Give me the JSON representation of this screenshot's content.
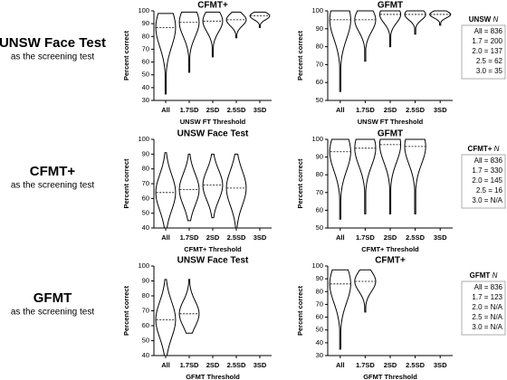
{
  "chart_data": [
    {
      "type": "violin",
      "title": "CFMT+",
      "y_label": "Percent correct",
      "x_label": "UNSW FT Threshold",
      "categories": [
        "All",
        "1.7SD",
        "2SD",
        "2.5SD",
        "3SD"
      ],
      "violins": [
        {
          "min": 35,
          "max": 98,
          "median": 87
        },
        {
          "min": 52,
          "max": 99,
          "median": 91
        },
        {
          "min": 64,
          "max": 99,
          "median": 92
        },
        {
          "min": 79,
          "max": 99,
          "median": 93
        },
        {
          "min": 87,
          "max": 99,
          "median": 96
        }
      ],
      "ylim": [
        30,
        100
      ],
      "yticks": [
        30,
        40,
        50,
        60,
        70,
        80,
        90,
        100
      ]
    },
    {
      "type": "violin",
      "title": "GFMT",
      "y_label": "Percent correct",
      "x_label": "UNSW FT Threshold",
      "categories": [
        "All",
        "1.7SD",
        "2SD",
        "2.5SD",
        "3SD"
      ],
      "violins": [
        {
          "min": 55,
          "max": 100,
          "median": 95
        },
        {
          "min": 72,
          "max": 100,
          "median": 95
        },
        {
          "min": 80,
          "max": 100,
          "median": 98
        },
        {
          "min": 87,
          "max": 100,
          "median": 98
        },
        {
          "min": 92,
          "max": 100,
          "median": 98
        }
      ],
      "ylim": [
        50,
        100
      ],
      "yticks": [
        50,
        60,
        70,
        80,
        90,
        100
      ]
    },
    {
      "type": "violin",
      "title": "UNSW Face Test",
      "y_label": "Percent correct",
      "x_label": "CFMT+ Threshold",
      "categories": [
        "All",
        "1.7SD",
        "2SD",
        "2.5SD",
        "3SD"
      ],
      "violins": [
        {
          "min": 40,
          "max": 91,
          "median": 64
        },
        {
          "min": 45,
          "max": 90,
          "median": 66
        },
        {
          "min": 47,
          "max": 90,
          "median": 69
        },
        {
          "min": 40,
          "max": 90,
          "median": 67
        },
        null
      ],
      "ylim": [
        40,
        100
      ],
      "yticks": [
        40,
        50,
        60,
        70,
        80,
        90,
        100
      ]
    },
    {
      "type": "violin",
      "title": "GFMT",
      "y_label": "Percent correct",
      "x_label": "CFMT+ Threshold",
      "categories": [
        "All",
        "1.7SD",
        "2SD",
        "2.5SD",
        "3SD"
      ],
      "violins": [
        {
          "min": 55,
          "max": 100,
          "median": 93
        },
        {
          "min": 58,
          "max": 100,
          "median": 95
        },
        {
          "min": 58,
          "max": 100,
          "median": 97
        },
        {
          "min": 58,
          "max": 100,
          "median": 96
        },
        null
      ],
      "ylim": [
        50,
        100
      ],
      "yticks": [
        50,
        60,
        70,
        80,
        90,
        100
      ]
    },
    {
      "type": "violin",
      "title": "UNSW Face Test",
      "y_label": "Percent correct",
      "x_label": "GFMT Threshold",
      "categories": [
        "All",
        "1.7SD",
        "2SD",
        "2.5SD",
        "3SD"
      ],
      "violins": [
        {
          "min": 40,
          "max": 91,
          "median": 64
        },
        {
          "min": 55,
          "max": 91,
          "median": 68
        },
        null,
        null,
        null
      ],
      "ylim": [
        40,
        100
      ],
      "yticks": [
        40,
        50,
        60,
        70,
        80,
        90,
        100
      ]
    },
    {
      "type": "violin",
      "title": "CFMT+",
      "y_label": "Percent correct",
      "x_label": "GFMT Threshold",
      "categories": [
        "All",
        "1.7SD",
        "2SD",
        "2.5SD",
        "3SD"
      ],
      "violins": [
        {
          "min": 35,
          "max": 97,
          "median": 86
        },
        {
          "min": 64,
          "max": 97,
          "median": 88
        },
        null,
        null,
        null
      ],
      "ylim": [
        30,
        100
      ],
      "yticks": [
        30,
        40,
        50,
        60,
        70,
        80,
        90,
        100
      ]
    }
  ],
  "rows": [
    {
      "title": "UNSW Face Test",
      "subtitle": "as the screening test",
      "n_header": "UNSW",
      "n_symbol": "N",
      "n_items": [
        "All = 836",
        "1.7 = 200",
        "2.0 = 137",
        "2.5 = 62",
        "3.0 = 35"
      ]
    },
    {
      "title": "CFMT+",
      "subtitle": "as the screening test",
      "n_header": "CFMT+",
      "n_symbol": "N",
      "n_items": [
        "All = 836",
        "1.7 = 330",
        "2.0 = 145",
        "2.5 = 16",
        "3.0 = N/A"
      ]
    },
    {
      "title": "GFMT",
      "subtitle": "as the screening test",
      "n_header": "GFMT",
      "n_symbol": "N",
      "n_items": [
        "All = 836",
        "1.7 = 123",
        "2.0 = N/A",
        "2.5 = N/A",
        "3.0 = N/A"
      ]
    }
  ]
}
